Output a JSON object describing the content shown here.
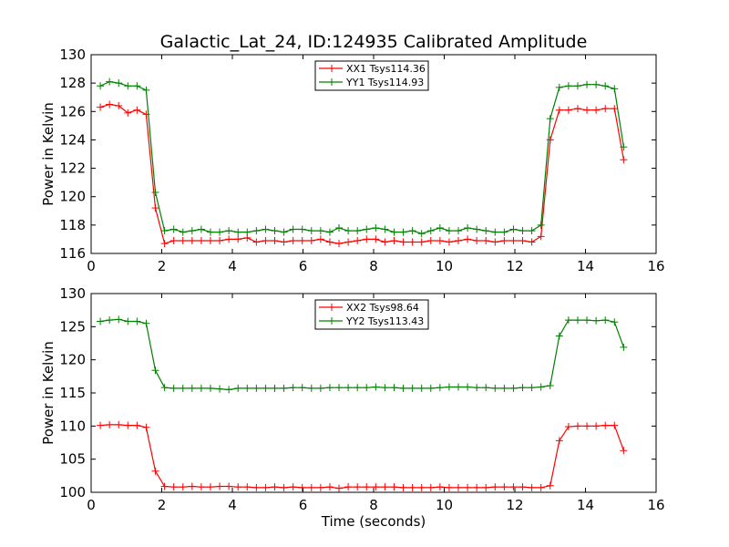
{
  "title": "Galactic_Lat_24, ID:124935 Calibrated Amplitude",
  "colors": {
    "red": "#ff0000",
    "green": "#008000",
    "frame": "#000000"
  },
  "chart_data": [
    {
      "type": "line",
      "xlabel": "",
      "ylabel": "Power in Kelvin",
      "xlim": [
        0,
        16
      ],
      "ylim": [
        116,
        130
      ],
      "xticks": [
        0,
        2,
        4,
        6,
        8,
        10,
        12,
        14,
        16
      ],
      "yticks": [
        116,
        118,
        120,
        122,
        124,
        126,
        128,
        130
      ],
      "grid": false,
      "legend_position": "top-center",
      "x": [
        0.26,
        0.52,
        0.78,
        1.04,
        1.3,
        1.56,
        1.82,
        2.08,
        2.34,
        2.6,
        2.86,
        3.12,
        3.38,
        3.64,
        3.9,
        4.16,
        4.42,
        4.68,
        4.94,
        5.2,
        5.46,
        5.72,
        5.98,
        6.24,
        6.5,
        6.76,
        7.02,
        7.28,
        7.54,
        7.8,
        8.06,
        8.32,
        8.58,
        8.84,
        9.1,
        9.36,
        9.62,
        9.88,
        10.14,
        10.4,
        10.66,
        10.92,
        11.18,
        11.44,
        11.7,
        11.96,
        12.22,
        12.48,
        12.74,
        13.0,
        13.26,
        13.52,
        13.78,
        14.04,
        14.3,
        14.56,
        14.82,
        15.08
      ],
      "series": [
        {
          "name": "XX1 Tsys114.36",
          "color": "#ff0000",
          "values": [
            126.3,
            126.5,
            126.4,
            125.9,
            126.1,
            125.8,
            119.2,
            116.7,
            116.9,
            116.9,
            116.9,
            116.9,
            116.9,
            116.9,
            117.0,
            117.0,
            117.1,
            116.8,
            116.9,
            116.9,
            116.8,
            116.9,
            116.9,
            116.9,
            117.0,
            116.8,
            116.7,
            116.8,
            116.9,
            117.0,
            117.0,
            116.8,
            116.9,
            116.8,
            116.8,
            116.8,
            116.9,
            116.9,
            116.8,
            116.9,
            117.0,
            116.9,
            116.9,
            116.8,
            116.9,
            116.9,
            116.9,
            116.8,
            117.2,
            124.0,
            126.1,
            126.1,
            126.2,
            126.1,
            126.1,
            126.2,
            126.2,
            122.6
          ]
        },
        {
          "name": "YY1 Tsys114.93",
          "color": "#008000",
          "values": [
            127.8,
            128.1,
            128.0,
            127.8,
            127.8,
            127.5,
            120.3,
            117.6,
            117.7,
            117.5,
            117.6,
            117.7,
            117.5,
            117.5,
            117.6,
            117.5,
            117.5,
            117.6,
            117.7,
            117.6,
            117.5,
            117.7,
            117.7,
            117.6,
            117.6,
            117.5,
            117.8,
            117.6,
            117.6,
            117.7,
            117.8,
            117.7,
            117.5,
            117.5,
            117.6,
            117.4,
            117.6,
            117.8,
            117.6,
            117.6,
            117.8,
            117.7,
            117.6,
            117.5,
            117.5,
            117.7,
            117.6,
            117.6,
            118.0,
            125.5,
            127.7,
            127.8,
            127.8,
            127.9,
            127.9,
            127.8,
            127.6,
            123.5
          ]
        }
      ]
    },
    {
      "type": "line",
      "xlabel": "Time (seconds)",
      "ylabel": "Power in Kelvin",
      "xlim": [
        0,
        16
      ],
      "ylim": [
        100,
        130
      ],
      "xticks": [
        0,
        2,
        4,
        6,
        8,
        10,
        12,
        14,
        16
      ],
      "yticks": [
        100,
        105,
        110,
        115,
        120,
        125,
        130
      ],
      "grid": false,
      "legend_position": "top-center",
      "x": [
        0.26,
        0.52,
        0.78,
        1.04,
        1.3,
        1.56,
        1.82,
        2.08,
        2.34,
        2.6,
        2.86,
        3.12,
        3.38,
        3.64,
        3.9,
        4.16,
        4.42,
        4.68,
        4.94,
        5.2,
        5.46,
        5.72,
        5.98,
        6.24,
        6.5,
        6.76,
        7.02,
        7.28,
        7.54,
        7.8,
        8.06,
        8.32,
        8.58,
        8.84,
        9.1,
        9.36,
        9.62,
        9.88,
        10.14,
        10.4,
        10.66,
        10.92,
        11.18,
        11.44,
        11.7,
        11.96,
        12.22,
        12.48,
        12.74,
        13.0,
        13.26,
        13.52,
        13.78,
        14.04,
        14.3,
        14.56,
        14.82,
        15.08
      ],
      "series": [
        {
          "name": "XX2 Tsys98.64",
          "color": "#ff0000",
          "values": [
            110.1,
            110.2,
            110.2,
            110.1,
            110.1,
            109.8,
            103.2,
            100.9,
            100.8,
            100.8,
            100.9,
            100.8,
            100.8,
            100.9,
            100.9,
            100.8,
            100.8,
            100.7,
            100.7,
            100.8,
            100.7,
            100.8,
            100.7,
            100.7,
            100.7,
            100.8,
            100.6,
            100.8,
            100.8,
            100.8,
            100.8,
            100.8,
            100.8,
            100.7,
            100.7,
            100.7,
            100.7,
            100.8,
            100.7,
            100.7,
            100.7,
            100.7,
            100.7,
            100.8,
            100.8,
            100.8,
            100.8,
            100.7,
            100.7,
            101.0,
            107.8,
            109.9,
            110.0,
            110.0,
            110.0,
            110.1,
            110.1,
            106.3
          ]
        },
        {
          "name": "YY2 Tsys113.43",
          "color": "#008000",
          "values": [
            125.8,
            126.0,
            126.1,
            125.8,
            125.8,
            125.5,
            118.4,
            115.8,
            115.7,
            115.7,
            115.7,
            115.7,
            115.7,
            115.6,
            115.5,
            115.7,
            115.7,
            115.7,
            115.7,
            115.7,
            115.7,
            115.8,
            115.8,
            115.7,
            115.7,
            115.8,
            115.8,
            115.8,
            115.8,
            115.8,
            115.9,
            115.8,
            115.8,
            115.7,
            115.7,
            115.7,
            115.7,
            115.8,
            115.9,
            115.9,
            115.9,
            115.8,
            115.8,
            115.7,
            115.7,
            115.7,
            115.8,
            115.8,
            115.9,
            116.1,
            123.6,
            126.0,
            126.0,
            126.0,
            125.9,
            126.0,
            125.7,
            121.9
          ]
        }
      ]
    }
  ]
}
